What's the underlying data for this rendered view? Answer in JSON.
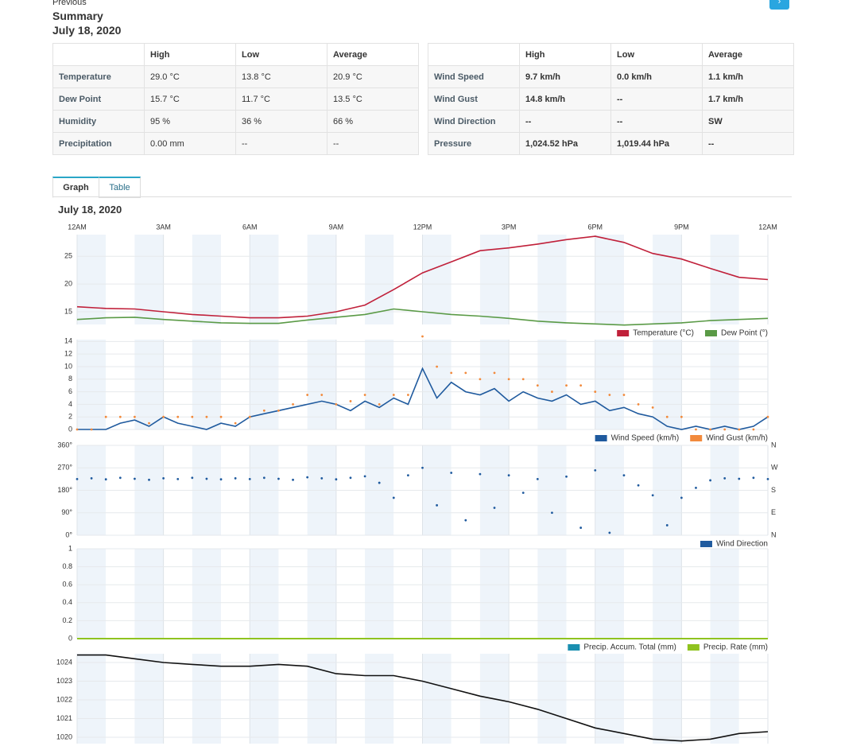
{
  "header": {
    "previous": "Previous",
    "title": "Summary",
    "date": "July 18, 2020"
  },
  "tables": {
    "left": {
      "columns": [
        "High",
        "Low",
        "Average"
      ],
      "rows": [
        {
          "label": "Temperature",
          "cells": [
            "29.0 °C",
            "13.8 °C",
            "20.9 °C"
          ]
        },
        {
          "label": "Dew Point",
          "cells": [
            "15.7 °C",
            "11.7 °C",
            "13.5 °C"
          ]
        },
        {
          "label": "Humidity",
          "cells": [
            "95 %",
            "36 %",
            "66 %"
          ]
        },
        {
          "label": "Precipitation",
          "cells": [
            "0.00 mm",
            "--",
            "--"
          ]
        }
      ]
    },
    "right": {
      "columns": [
        "High",
        "Low",
        "Average"
      ],
      "rows": [
        {
          "label": "Wind Speed",
          "cells": [
            "9.7 km/h",
            "0.0 km/h",
            "1.1 km/h"
          ]
        },
        {
          "label": "Wind Gust",
          "cells": [
            "14.8 km/h",
            "--",
            "1.7 km/h"
          ]
        },
        {
          "label": "Wind Direction",
          "cells": [
            "--",
            "--",
            "SW"
          ]
        },
        {
          "label": "Pressure",
          "cells": [
            "1,024.52 hPa",
            "1,019.44 hPa",
            "--"
          ]
        }
      ]
    }
  },
  "tabs": [
    "Graph",
    "Table"
  ],
  "graph": {
    "title": "July 18, 2020"
  },
  "chart_data": [
    {
      "type": "line",
      "x": [
        0,
        1,
        2,
        3,
        4,
        5,
        6,
        7,
        8,
        9,
        10,
        11,
        12,
        13,
        14,
        15,
        16,
        17,
        18,
        19,
        20,
        21,
        22,
        23,
        24
      ],
      "xlim": [
        0,
        24
      ],
      "xticks": [
        {
          "value": 0,
          "label": "12AM"
        },
        {
          "value": 3,
          "label": "3AM"
        },
        {
          "value": 6,
          "label": "6AM"
        },
        {
          "value": 9,
          "label": "9AM"
        },
        {
          "value": 12,
          "label": "12PM"
        },
        {
          "value": 15,
          "label": "3PM"
        },
        {
          "value": 18,
          "label": "6PM"
        },
        {
          "value": 21,
          "label": "9PM"
        },
        {
          "value": 24,
          "label": "12AM"
        }
      ],
      "ylim": [
        12.7,
        28.9
      ],
      "yticks": [
        15,
        20,
        25
      ],
      "series": [
        {
          "name": "Temperature (°C)",
          "color": "#c0203a",
          "values": [
            15.9,
            15.6,
            15.5,
            15.0,
            14.5,
            14.2,
            13.9,
            13.9,
            14.2,
            15.0,
            16.2,
            19.0,
            22.0,
            24.0,
            26.0,
            26.5,
            27.2,
            28.0,
            28.6,
            27.5,
            25.5,
            24.5,
            22.8,
            21.2,
            20.8
          ]
        },
        {
          "name": "Dew Point (°)",
          "color": "#5a9a46",
          "values": [
            13.6,
            13.9,
            14.0,
            13.6,
            13.3,
            13.0,
            12.9,
            12.9,
            13.5,
            14.0,
            14.5,
            15.5,
            15.0,
            14.5,
            14.2,
            13.8,
            13.3,
            13.0,
            12.8,
            12.6,
            12.8,
            13.0,
            13.4,
            13.6,
            13.8
          ]
        }
      ]
    },
    {
      "type": "scatter",
      "x": [
        0,
        0.5,
        1,
        1.5,
        2,
        2.5,
        3,
        3.5,
        4,
        4.5,
        5,
        5.5,
        6,
        6.5,
        7,
        7.5,
        8,
        8.5,
        9,
        9.5,
        10,
        10.5,
        11,
        11.5,
        12,
        12.5,
        13,
        13.5,
        14,
        14.5,
        15,
        15.5,
        16,
        16.5,
        17,
        17.5,
        18,
        18.5,
        19,
        19.5,
        20,
        20.5,
        21,
        21.5,
        22,
        22.5,
        23,
        23.5,
        24
      ],
      "xlim": [
        0,
        24
      ],
      "ylim": [
        0,
        14.3
      ],
      "yticks": [
        0,
        2,
        4,
        6,
        8,
        10,
        12,
        14
      ],
      "series": [
        {
          "name": "Wind Speed (km/h)",
          "color": "#1f5a9e",
          "style": "line",
          "values": [
            0,
            0,
            0,
            1,
            1.5,
            0.5,
            2,
            1,
            0.5,
            0,
            1,
            0.5,
            2,
            2.5,
            3,
            3.5,
            4,
            4.5,
            4,
            3,
            4.5,
            3.5,
            5,
            4,
            9.7,
            5,
            7.5,
            6,
            5.5,
            6.5,
            4.5,
            6,
            5,
            4.5,
            5.5,
            4,
            4.5,
            3,
            3.5,
            2.5,
            2,
            0.5,
            0,
            0.5,
            0,
            0.5,
            0,
            0.5,
            2
          ]
        },
        {
          "name": "Wind Gust (km/h)",
          "color": "#f28a3c",
          "style": "dots",
          "values": [
            0,
            0,
            2,
            2,
            2,
            1,
            2,
            2,
            2,
            2,
            2,
            1,
            2,
            3,
            3,
            4,
            5.5,
            5.5,
            4,
            4.5,
            5.5,
            4,
            5.5,
            5.5,
            14.8,
            10,
            9,
            9,
            8,
            9,
            8,
            8,
            7,
            6,
            7,
            7,
            6,
            5.5,
            5.5,
            4,
            3.5,
            2,
            2,
            0,
            0,
            0,
            0,
            0,
            2
          ]
        }
      ]
    },
    {
      "type": "scatter",
      "x": [
        0,
        0.5,
        1,
        1.5,
        2,
        2.5,
        3,
        3.5,
        4,
        4.5,
        5,
        5.5,
        6,
        6.5,
        7,
        7.5,
        8,
        8.5,
        9,
        9.5,
        10,
        10.5,
        11,
        11.5,
        12,
        12.5,
        13,
        13.5,
        14,
        14.5,
        15,
        15.5,
        16,
        16.5,
        17,
        17.5,
        18,
        18.5,
        19,
        19.5,
        20,
        20.5,
        21,
        21.5,
        22,
        22.5,
        23,
        23.5,
        24
      ],
      "xlim": [
        0,
        24
      ],
      "ylim": [
        0,
        360
      ],
      "yticks": [
        {
          "value": 0,
          "label": "0°"
        },
        {
          "value": 90,
          "label": "90°"
        },
        {
          "value": 180,
          "label": "180°"
        },
        {
          "value": 270,
          "label": "270°"
        },
        {
          "value": 360,
          "label": "360°"
        }
      ],
      "y2ticks": [
        {
          "value": 0,
          "label": "N"
        },
        {
          "value": 90,
          "label": "E"
        },
        {
          "value": 180,
          "label": "S"
        },
        {
          "value": 270,
          "label": "W"
        },
        {
          "value": 360,
          "label": "N"
        }
      ],
      "series": [
        {
          "name": "Wind Direction",
          "color": "#1f5a9e",
          "style": "dots",
          "values": [
            225,
            228,
            224,
            230,
            226,
            222,
            228,
            225,
            230,
            226,
            224,
            228,
            225,
            230,
            226,
            222,
            232,
            228,
            224,
            230,
            236,
            210,
            150,
            240,
            270,
            120,
            250,
            60,
            245,
            110,
            240,
            170,
            225,
            90,
            235,
            30,
            260,
            10,
            240,
            200,
            160,
            40,
            150,
            190,
            220,
            228,
            226,
            230,
            225
          ]
        }
      ]
    },
    {
      "type": "line",
      "x": [
        0,
        24
      ],
      "xlim": [
        0,
        24
      ],
      "ylim": [
        0,
        1
      ],
      "yticks": [
        0,
        0.2,
        0.4,
        0.6,
        0.8,
        1
      ],
      "series": [
        {
          "name": "Precip. Accum. Total (mm)",
          "color": "#1a8fb0",
          "values": [
            0,
            0
          ]
        },
        {
          "name": "Precip. Rate (mm)",
          "color": "#8fc31f",
          "values": [
            0,
            0
          ]
        }
      ]
    },
    {
      "type": "line",
      "x": [
        0,
        1,
        2,
        3,
        4,
        5,
        6,
        7,
        8,
        9,
        10,
        11,
        12,
        13,
        14,
        15,
        16,
        17,
        18,
        19,
        20,
        21,
        22,
        23,
        24
      ],
      "xlim": [
        0,
        24
      ],
      "ylim": [
        1019.66,
        1024.47
      ],
      "yticks": [
        1020,
        1021,
        1022,
        1023,
        1024
      ],
      "series": [
        {
          "color": "#111111",
          "values": [
            1024.4,
            1024.4,
            1024.2,
            1024.0,
            1023.9,
            1023.8,
            1023.8,
            1023.9,
            1023.8,
            1023.4,
            1023.3,
            1023.3,
            1023.0,
            1022.6,
            1022.2,
            1021.9,
            1021.5,
            1021.0,
            1020.5,
            1020.2,
            1019.9,
            1019.8,
            1019.9,
            1020.2,
            1020.3
          ]
        }
      ]
    }
  ]
}
